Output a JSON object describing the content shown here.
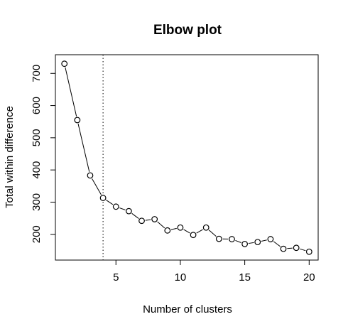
{
  "chart_data": {
    "type": "line",
    "title": "Elbow plot",
    "xlabel": "Number of clusters",
    "ylabel": "Total within difference",
    "x": [
      1,
      2,
      3,
      4,
      5,
      6,
      7,
      8,
      9,
      10,
      11,
      12,
      13,
      14,
      15,
      16,
      17,
      18,
      19,
      20
    ],
    "series": [
      {
        "values": [
          730,
          555,
          383,
          313,
          286,
          272,
          242,
          247,
          212,
          221,
          198,
          221,
          186,
          185,
          170,
          176,
          185,
          155,
          158,
          146
        ]
      }
    ],
    "xlim": [
      0.3,
      20.7
    ],
    "ylim": [
      120,
      758
    ],
    "xticks": [
      5,
      10,
      15,
      20
    ],
    "yticks": [
      200,
      300,
      400,
      500,
      600,
      700
    ],
    "vline_x": 4,
    "vline_style": "dotted",
    "marker": "open-circle",
    "grid": false
  }
}
